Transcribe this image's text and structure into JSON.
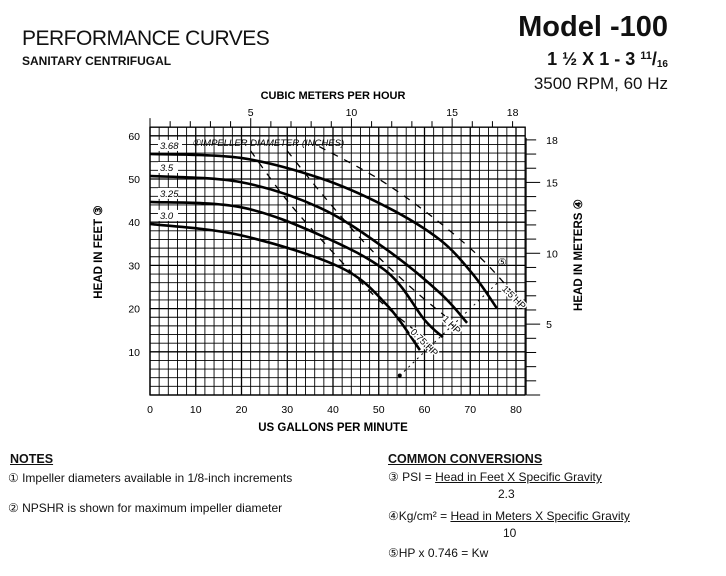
{
  "header": {
    "title": "PERFORMANCE CURVES",
    "subtitle": "SANITARY CENTRIFUGAL",
    "model": "Model -100",
    "size_main": "1 ½ X 1 - 3 ",
    "size_num": "11",
    "size_den": "16",
    "speed": "3500 RPM, 60 Hz"
  },
  "chart_data": {
    "type": "line",
    "xlabel": "US GALLONS PER MINUTE",
    "ylabel": "HEAD IN FEET ③",
    "x2label": "CUBIC METERS PER HOUR",
    "y2label": "HEAD IN METERS ④",
    "xlim": [
      0,
      82
    ],
    "ylim": [
      0,
      62
    ],
    "xticks": [
      0,
      10,
      20,
      30,
      40,
      50,
      60,
      70,
      80
    ],
    "yticks": [
      10,
      20,
      30,
      40,
      50,
      60
    ],
    "x2ticks": [
      5,
      10,
      15,
      18
    ],
    "y2ticks": [
      5,
      10,
      15,
      18
    ],
    "grid": true,
    "impeller_label": "IMPELLER DIAMETER (INCHES)",
    "impeller_marker": "①",
    "series": [
      {
        "name": "3.68",
        "x": [
          0,
          19.7,
          37.2,
          51.8,
          63.4,
          70.7,
          75.8
        ],
        "y": [
          55.8,
          54.9,
          50.2,
          43.5,
          35.9,
          27.8,
          20.1
        ]
      },
      {
        "name": "3.5",
        "x": [
          0,
          19.7,
          37.2,
          51.8,
          63.4,
          69.3
        ],
        "y": [
          50.7,
          49.3,
          43.3,
          33.6,
          23.6,
          16.7
        ]
      },
      {
        "name": "3.25",
        "x": [
          0,
          19.7,
          37.2,
          51.8,
          60,
          64
        ],
        "y": [
          44.7,
          43.5,
          37.0,
          28.5,
          17.4,
          13.4
        ]
      },
      {
        "name": "3.0",
        "x": [
          0,
          19.7,
          41.5,
          51.8,
          59
        ],
        "y": [
          39.6,
          37.0,
          29.6,
          20.8,
          10.4
        ]
      }
    ],
    "power_lines": [
      {
        "name": "1.5 HP",
        "x": [
          37,
          50,
          62,
          72,
          79
        ],
        "y": [
          57.5,
          50,
          41,
          32,
          24
        ]
      },
      {
        "name": "1 HP",
        "x": [
          30,
          38,
          48,
          58,
          66
        ],
        "y": [
          56.5,
          46,
          34,
          24,
          17
        ]
      },
      {
        "name": "0.75 HP",
        "x": [
          22,
          30,
          40,
          50,
          59
        ],
        "y": [
          56.5,
          45,
          33,
          22,
          14
        ]
      }
    ],
    "hp_marker": "⑤",
    "npshr_line": {
      "x": [
        54.6,
        62,
        70,
        76
      ],
      "y": [
        4.5,
        12,
        20,
        26
      ]
    }
  },
  "notes": {
    "heading": "NOTES",
    "items": [
      "① Impeller diameters available in 1/8-inch increments",
      "② NPSHR is shown for maximum impeller diameter"
    ]
  },
  "conversions": {
    "heading": "COMMON CONVERSIONS",
    "psi_prefix": "③ PSI = ",
    "psi_num": "Head in Feet X Specific Gravity",
    "psi_den": "2.3",
    "kg_prefix": "④Kg/cm² = ",
    "kg_num": "Head in Meters X Specific Gravity",
    "kg_den": "10",
    "hp": "⑤HP x 0.746 = Kw"
  }
}
